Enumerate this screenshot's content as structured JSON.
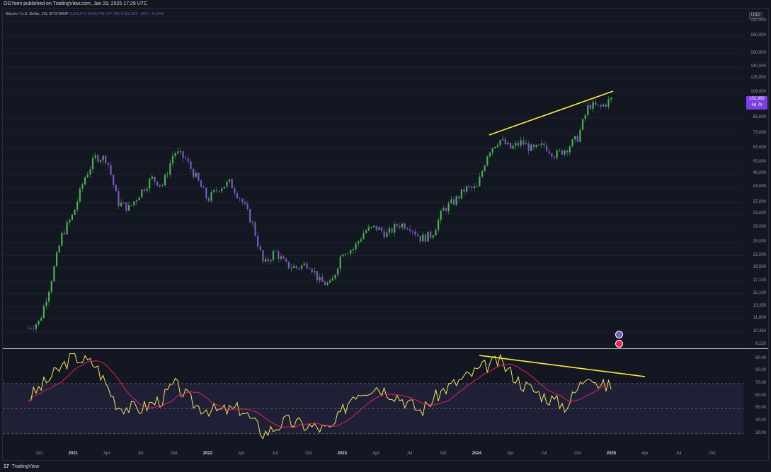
{
  "header": {
    "publish_text": "OGYomi published on TradingView.com, Jan 29, 2025 17:29 UTC"
  },
  "symbol": {
    "name": "Bitcoin / U.S. Dollar, 1W, BITSTAMP",
    "open": "O103,573",
    "high": "H103,745",
    "low": "L97,750",
    "close": "C102,369",
    "change": "−204 (−0.20%)"
  },
  "axis": {
    "currency": "USD",
    "price_labels": [
      "220,000",
      "190,000",
      "160,000",
      "140,000",
      "125,000",
      "109,000",
      "85,000",
      "73,000",
      "63,000",
      "55,000",
      "49,000",
      "43,000",
      "37,000",
      "33,000",
      "29,000",
      "25,000",
      "22,000",
      "19,500",
      "17,100",
      "15,100",
      "13,350",
      "11,800",
      "10,350",
      "9,150"
    ],
    "last_price": "102,369",
    "countdown": "4d 7h",
    "rsi_labels": [
      "90.00",
      "80.00",
      "70.00",
      "60.00",
      "50.00",
      "40.00",
      "30.00"
    ]
  },
  "time_axis": {
    "labels": [
      "Oct",
      "2021",
      "Apr",
      "Jul",
      "Oct",
      "2022",
      "Apr",
      "Jul",
      "Oct",
      "2023",
      "Apr",
      "Jul",
      "Oct",
      "2024",
      "Apr",
      "Jul",
      "Oct",
      "2025",
      "Apr",
      "Jul",
      "Oct"
    ]
  },
  "footer": {
    "brand": "TradingView",
    "logo": "17"
  },
  "colors": {
    "background": "#131722",
    "up_candle": "#4caf50",
    "down_candle": "#7e57c2",
    "trendline": "#ffeb3b",
    "rsi_line": "#f5e663",
    "rsi_ma": "#e91e63",
    "rsi_band": "#7e57c2"
  },
  "chart_data": {
    "type": "candlestick",
    "price_scale": "log",
    "ylim": [
      9150,
      220000
    ],
    "x_range": [
      "2020-09",
      "2025-10"
    ],
    "anchor_closes": [
      [
        "2020-09",
        10800
      ],
      [
        "2020-10",
        11500
      ],
      [
        "2020-11",
        17000
      ],
      [
        "2020-12",
        27000
      ],
      [
        "2021-01",
        33000
      ],
      [
        "2021-02",
        47000
      ],
      [
        "2021-03",
        58000
      ],
      [
        "2021-04",
        57000
      ],
      [
        "2021-05",
        37000
      ],
      [
        "2021-06",
        35000
      ],
      [
        "2021-07",
        41000
      ],
      [
        "2021-08",
        47000
      ],
      [
        "2021-09",
        44000
      ],
      [
        "2021-10",
        61000
      ],
      [
        "2021-11",
        57000
      ],
      [
        "2021-12",
        47000
      ],
      [
        "2022-01",
        38000
      ],
      [
        "2022-02",
        43000
      ],
      [
        "2022-03",
        45000
      ],
      [
        "2022-04",
        38000
      ],
      [
        "2022-05",
        30000
      ],
      [
        "2022-06",
        20000
      ],
      [
        "2022-07",
        23000
      ],
      [
        "2022-08",
        20000
      ],
      [
        "2022-09",
        19500
      ],
      [
        "2022-10",
        20500
      ],
      [
        "2022-11",
        17000
      ],
      [
        "2022-12",
        16500
      ],
      [
        "2023-01",
        23000
      ],
      [
        "2023-02",
        23500
      ],
      [
        "2023-03",
        28000
      ],
      [
        "2023-04",
        29000
      ],
      [
        "2023-05",
        27000
      ],
      [
        "2023-06",
        30000
      ],
      [
        "2023-07",
        29500
      ],
      [
        "2023-08",
        26000
      ],
      [
        "2023-09",
        27000
      ],
      [
        "2023-10",
        34500
      ],
      [
        "2023-11",
        37500
      ],
      [
        "2023-12",
        42500
      ],
      [
        "2024-01",
        42500
      ],
      [
        "2024-02",
        61000
      ],
      [
        "2024-03",
        69000
      ],
      [
        "2024-04",
        63000
      ],
      [
        "2024-05",
        67000
      ],
      [
        "2024-06",
        62000
      ],
      [
        "2024-07",
        65000
      ],
      [
        "2024-08",
        59000
      ],
      [
        "2024-09",
        63000
      ],
      [
        "2024-10",
        70000
      ],
      [
        "2024-11",
        97000
      ],
      [
        "2024-12",
        94000
      ],
      [
        "2025-01",
        102369
      ]
    ],
    "rsi_anchors": [
      [
        "2020-09",
        58
      ],
      [
        "2020-11",
        75
      ],
      [
        "2021-01",
        92
      ],
      [
        "2021-03",
        85
      ],
      [
        "2021-05",
        52
      ],
      [
        "2021-07",
        50
      ],
      [
        "2021-09",
        58
      ],
      [
        "2021-10",
        70
      ],
      [
        "2021-12",
        52
      ],
      [
        "2022-02",
        48
      ],
      [
        "2022-04",
        50
      ],
      [
        "2022-06",
        30
      ],
      [
        "2022-08",
        40
      ],
      [
        "2022-10",
        36
      ],
      [
        "2022-12",
        33
      ],
      [
        "2023-02",
        62
      ],
      [
        "2023-04",
        68
      ],
      [
        "2023-06",
        60
      ],
      [
        "2023-08",
        48
      ],
      [
        "2023-10",
        65
      ],
      [
        "2023-12",
        75
      ],
      [
        "2024-02",
        85
      ],
      [
        "2024-03",
        88
      ],
      [
        "2024-05",
        70
      ],
      [
        "2024-07",
        60
      ],
      [
        "2024-09",
        52
      ],
      [
        "2024-11",
        80
      ],
      [
        "2024-12",
        68
      ],
      [
        "2025-01",
        68
      ]
    ],
    "rsi_levels": {
      "upper": 70,
      "middle": 50,
      "lower": 30
    }
  }
}
